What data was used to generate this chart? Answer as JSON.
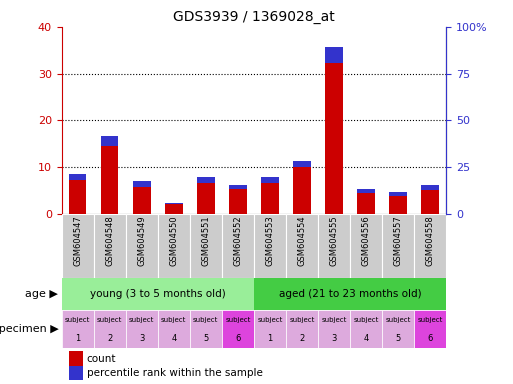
{
  "title": "GDS3939 / 1369028_at",
  "samples": [
    "GSM604547",
    "GSM604548",
    "GSM604549",
    "GSM604550",
    "GSM604551",
    "GSM604552",
    "GSM604553",
    "GSM604554",
    "GSM604555",
    "GSM604556",
    "GSM604557",
    "GSM604558"
  ],
  "count_values": [
    7.2,
    14.5,
    5.8,
    2.0,
    6.6,
    5.2,
    6.6,
    10.0,
    32.2,
    4.5,
    3.8,
    5.1
  ],
  "percentile_values": [
    3.0,
    5.5,
    3.0,
    1.0,
    3.0,
    2.5,
    3.0,
    3.0,
    9.0,
    2.0,
    2.0,
    2.5
  ],
  "ylim_left": [
    0,
    40
  ],
  "ylim_right": [
    0,
    100
  ],
  "yticks_left": [
    0,
    10,
    20,
    30,
    40
  ],
  "ytick_labels_left": [
    "0",
    "10",
    "20",
    "30",
    "40"
  ],
  "yticks_right": [
    0,
    25,
    50,
    75,
    100
  ],
  "ytick_labels_right": [
    "0",
    "25",
    "50",
    "75",
    "100%"
  ],
  "count_color": "#cc0000",
  "percentile_color": "#3333cc",
  "bar_width": 0.55,
  "age_groups": [
    {
      "label": "young (3 to 5 months old)",
      "start": 0,
      "end": 5,
      "color": "#99ee99"
    },
    {
      "label": "aged (21 to 23 months old)",
      "start": 6,
      "end": 11,
      "color": "#44cc44"
    }
  ],
  "specimen_colors_light": "#ddaadd",
  "specimen_colors_dark": "#dd44dd",
  "specimen_dark_indices": [
    5,
    11
  ],
  "specimen_labels_top": [
    "subject",
    "subject",
    "subject",
    "subject",
    "subject",
    "subject",
    "subject",
    "subject",
    "subject",
    "subject",
    "subject",
    "subject"
  ],
  "specimen_labels_num": [
    "1",
    "2",
    "3",
    "4",
    "5",
    "6",
    "1",
    "2",
    "3",
    "4",
    "5",
    "6"
  ],
  "age_label": "age",
  "specimen_label": "specimen",
  "legend_count": "count",
  "legend_percentile": "percentile rank within the sample",
  "tick_color_left": "#cc0000",
  "tick_color_right": "#3333cc",
  "cell_bg_color": "#cccccc",
  "cell_border_color": "#999999"
}
